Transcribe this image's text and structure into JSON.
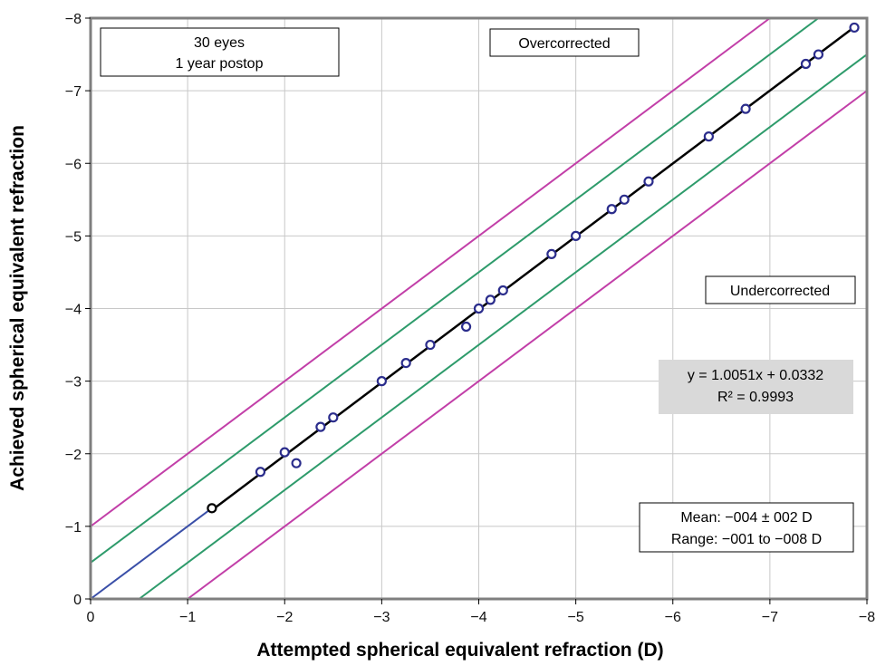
{
  "chart_data": {
    "type": "scatter",
    "xlabel": "Attempted spherical equivalent refraction (D)",
    "ylabel": "Achieved spherical equivalent refraction",
    "xlim": [
      0,
      -8
    ],
    "ylim": [
      0,
      -8
    ],
    "x_ticks": [
      "0",
      "−1",
      "−2",
      "−3",
      "−4",
      "−5",
      "−6",
      "−7",
      "−8"
    ],
    "y_ticks": [
      "0",
      "−1",
      "−2",
      "−3",
      "−4",
      "−5",
      "−6",
      "−7",
      "−8"
    ],
    "grid": true,
    "colors": {
      "points": "#2b2d8c",
      "fit_line": "#000000",
      "identity_extension": "#3a4fa8",
      "inner_band": "#2e9b6b",
      "outer_band": "#c23fa8",
      "equation_box": "#d9d9d9"
    },
    "series": [
      {
        "values": [
          {
            "x": -1.25,
            "y": -1.25
          },
          {
            "x": -1.75,
            "y": -1.75
          },
          {
            "x": -2.0,
            "y": -2.02
          },
          {
            "x": -2.12,
            "y": -1.87
          },
          {
            "x": -2.37,
            "y": -2.37
          },
          {
            "x": -2.5,
            "y": -2.5
          },
          {
            "x": -3.0,
            "y": -3.0
          },
          {
            "x": -3.25,
            "y": -3.25
          },
          {
            "x": -3.5,
            "y": -3.5
          },
          {
            "x": -3.87,
            "y": -3.75
          },
          {
            "x": -4.0,
            "y": -4.0
          },
          {
            "x": -4.12,
            "y": -4.12
          },
          {
            "x": -4.25,
            "y": -4.25
          },
          {
            "x": -4.75,
            "y": -4.75
          },
          {
            "x": -5.0,
            "y": -5.0
          },
          {
            "x": -5.37,
            "y": -5.37
          },
          {
            "x": -5.5,
            "y": -5.5
          },
          {
            "x": -5.75,
            "y": -5.75
          },
          {
            "x": -6.37,
            "y": -6.37
          },
          {
            "x": -6.75,
            "y": -6.75
          },
          {
            "x": -7.37,
            "y": -7.37
          },
          {
            "x": -7.5,
            "y": -7.5
          },
          {
            "x": -7.87,
            "y": -7.87
          }
        ]
      }
    ],
    "fit": {
      "slope": 1.0051,
      "intercept": 0.0332,
      "x_from": -1.25,
      "x_to": -7.87
    },
    "reference_lines": [
      {
        "kind": "identity",
        "offset": 0,
        "x_from": 0,
        "x_to": -1.25
      },
      {
        "kind": "inner_band",
        "offset": 0.5
      },
      {
        "kind": "inner_band",
        "offset": -0.5
      },
      {
        "kind": "outer_band",
        "offset": 1.0
      },
      {
        "kind": "outer_band",
        "offset": -1.0
      }
    ],
    "annotations": {
      "sample_box": {
        "line1": "30 eyes",
        "line2": "1 year postop"
      },
      "overcorrected": "Overcorrected",
      "undercorrected": "Undercorrected",
      "equation": {
        "line1": "y = 1.0051x + 0.0332",
        "line2": "R² = 0.9993"
      },
      "stats_box": {
        "line1": "Mean: −004 ± 002 D",
        "line2": "Range: −001 to −008 D"
      }
    }
  }
}
